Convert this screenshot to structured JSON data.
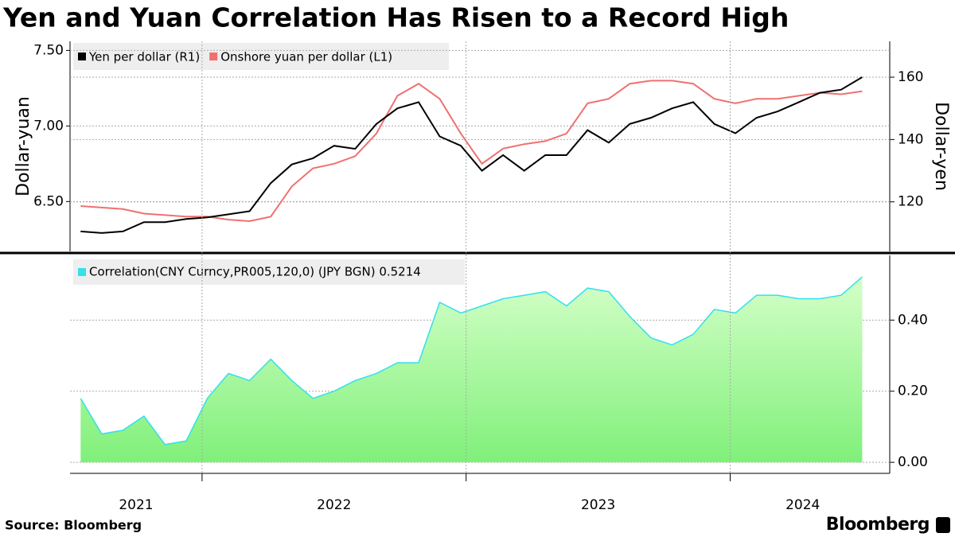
{
  "title": "Yen and Yuan Correlation Has Risen to a Record High",
  "source": "Source: Bloomberg",
  "brand": "Bloomberg",
  "chart_data": [
    {
      "type": "line",
      "ylabel": "Dollar-yuan",
      "y2label": "Dollar-yen",
      "x": [
        2021.54,
        2021.62,
        2021.7,
        2021.78,
        2021.86,
        2021.94,
        2022.02,
        2022.1,
        2022.18,
        2022.26,
        2022.34,
        2022.42,
        2022.5,
        2022.58,
        2022.66,
        2022.74,
        2022.82,
        2022.9,
        2022.98,
        2023.06,
        2023.14,
        2023.22,
        2023.3,
        2023.38,
        2023.46,
        2023.54,
        2023.62,
        2023.7,
        2023.78,
        2023.86,
        2023.94,
        2024.02,
        2024.1,
        2024.18,
        2024.26,
        2024.34,
        2024.42,
        2024.5
      ],
      "xlim": [
        2021.5,
        2024.55
      ],
      "ylim": [
        6.17,
        7.56
      ],
      "yticks": [
        {
          "value": 7.5,
          "label": "7.50"
        },
        {
          "value": 7,
          "label": "7.00"
        },
        {
          "value": 6.5,
          "label": "6.50"
        }
      ],
      "y2lim": [
        104.1,
        171.5
      ],
      "y2ticks": [
        120,
        140,
        160
      ],
      "grid": true,
      "series": [
        {
          "name": "Yen per dollar (R1)",
          "color": "#000000",
          "axis": "y2",
          "values": [
            110.5,
            110,
            110.5,
            113.5,
            113.5,
            114.5,
            115,
            116,
            117,
            126,
            132,
            134,
            138,
            137,
            145,
            150,
            152,
            141,
            138,
            130,
            135,
            130,
            135,
            135,
            143,
            139,
            145,
            147,
            150,
            152,
            145,
            142,
            147,
            149,
            152,
            155,
            156,
            160
          ]
        },
        {
          "name": "Onshore yuan per dollar (L1)",
          "color": "#f07070",
          "values": [
            6.47,
            6.46,
            6.45,
            6.42,
            6.41,
            6.4,
            6.4,
            6.38,
            6.37,
            6.4,
            6.6,
            6.72,
            6.75,
            6.8,
            6.95,
            7.2,
            7.28,
            7.18,
            6.95,
            6.75,
            6.85,
            6.88,
            6.9,
            6.95,
            7.15,
            7.18,
            7.28,
            7.3,
            7.3,
            7.28,
            7.18,
            7.15,
            7.18,
            7.18,
            7.2,
            7.22,
            7.21,
            7.23
          ]
        }
      ]
    },
    {
      "type": "area",
      "x": [
        2021.54,
        2021.62,
        2021.7,
        2021.78,
        2021.86,
        2021.94,
        2022.02,
        2022.1,
        2022.18,
        2022.26,
        2022.34,
        2022.42,
        2022.5,
        2022.58,
        2022.66,
        2022.74,
        2022.82,
        2022.9,
        2022.98,
        2023.06,
        2023.14,
        2023.22,
        2023.3,
        2023.38,
        2023.46,
        2023.54,
        2023.62,
        2023.7,
        2023.78,
        2023.86,
        2023.94,
        2024.02,
        2024.1,
        2024.18,
        2024.26,
        2024.34,
        2024.42,
        2024.5
      ],
      "xlim": [
        2021.5,
        2024.55
      ],
      "xticks": [
        2021,
        2022,
        2023,
        2024
      ],
      "ylim": [
        -0.031,
        0.582
      ],
      "yticks": [
        {
          "value": 0,
          "label": "0.00"
        },
        {
          "value": 0.2,
          "label": "0.20"
        },
        {
          "value": 0.4,
          "label": "0.40"
        }
      ],
      "grid": true,
      "series": [
        {
          "name": "Correlation(CNY Curncy,PR005,120,0) (JPY BGN) 0.5214",
          "color": "#33e0ee",
          "values": [
            0.18,
            0.08,
            0.09,
            0.13,
            0.05,
            0.06,
            0.18,
            0.25,
            0.23,
            0.29,
            0.23,
            0.18,
            0.2,
            0.23,
            0.25,
            0.28,
            0.28,
            0.45,
            0.42,
            0.44,
            0.46,
            0.47,
            0.48,
            0.44,
            0.49,
            0.48,
            0.41,
            0.35,
            0.33,
            0.36,
            0.43,
            0.42,
            0.47,
            0.47,
            0.46,
            0.46,
            0.47,
            0.5214
          ]
        }
      ]
    }
  ]
}
